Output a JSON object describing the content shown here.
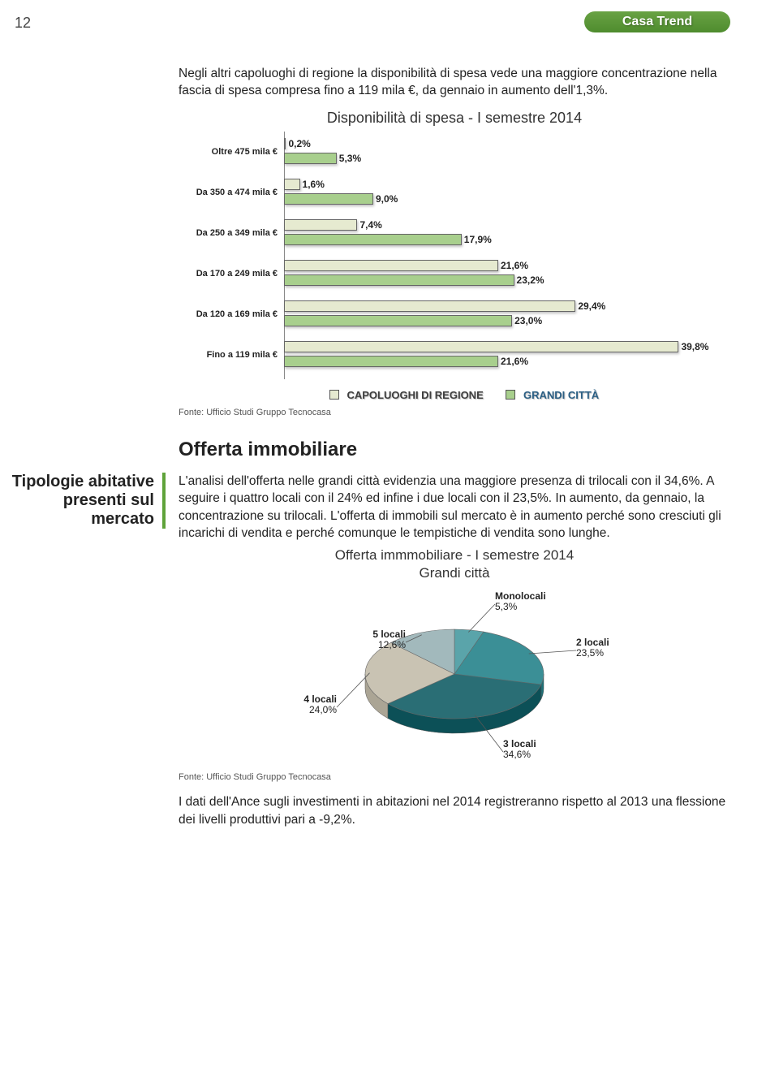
{
  "page_number": "12",
  "badge": "Casa Trend",
  "intro_para": "Negli altri capoluoghi di regione la disponibilità di spesa vede una maggiore concentrazione nella fascia di spesa compresa fino a 119 mila €, da gennaio in aumento dell'1,3%.",
  "bar_chart": {
    "title": "Disponibilità di spesa - I semestre 2014",
    "type": "bar",
    "max_pct": 45,
    "categories": [
      "Oltre 475 mila €",
      "Da 350 a 474 mila €",
      "Da 250 a 349 mila €",
      "Da 170 a 249 mila €",
      "Da 120 a 169 mila €",
      "Fino a 119 mila €"
    ],
    "series": [
      {
        "name": "CAPOLUOGHI DI REGIONE",
        "color": "#e6ead0",
        "values": [
          0.2,
          1.6,
          7.4,
          21.6,
          29.4,
          39.8
        ]
      },
      {
        "name": "GRANDI CITTÀ",
        "color": "#a8cf8d",
        "values": [
          5.3,
          9.0,
          17.9,
          23.2,
          23.0,
          21.6
        ]
      }
    ],
    "legend_colors": {
      "s1": "#e6ead0",
      "s2": "#a8cf8d"
    },
    "legend_labels": {
      "s1": "CAPOLUOGHI DI REGIONE",
      "s2": "GRANDI CITTÀ"
    },
    "legend_text_colors": {
      "s1": "#3e3e3e",
      "s2": "#2b5f84"
    }
  },
  "fonte": "Fonte: Ufficio Studi Gruppo Tecnocasa",
  "section_heading": "Offerta immobiliare",
  "sidebar_label": "Tipologie abitative presenti sul mercato",
  "offerta_para": "L'analisi dell'offerta nelle grandi città  evidenzia una maggiore presenza di trilocali con il 34,6%. A seguire i quattro locali con il 24% ed infine i due locali con il 23,5%. In aumento, da gennaio, la concentrazione su trilocali. L'offerta di immobili sul mercato è in aumento perché sono cresciuti gli incarichi di vendita e perché comunque le tempistiche di vendita sono lunghe.",
  "pie_chart": {
    "title_l1": "Offerta immmobiliare - I semestre 2014",
    "title_l2": "Grandi città",
    "type": "pie",
    "slices": [
      {
        "label": "Monolocali",
        "value": 5.3,
        "value_label": "5,3%",
        "color": "#5aa4aa"
      },
      {
        "label": "2 locali",
        "value": 23.5,
        "value_label": "23,5%",
        "color": "#3b8f96"
      },
      {
        "label": "3 locali",
        "value": 34.6,
        "value_label": "34,6%",
        "color": "#2a6e75"
      },
      {
        "label": "4 locali",
        "value": 24.0,
        "value_label": "24,0%",
        "color": "#c9c3b3"
      },
      {
        "label": "5 locali",
        "value": 12.6,
        "value_label": "12,6%",
        "color": "#a2b9bc"
      }
    ]
  },
  "bottom_para": "I dati dell'Ance sugli investimenti in abitazioni nel 2014 registreranno rispetto al 2013 una flessione dei livelli produttivi pari a -9,2%."
}
